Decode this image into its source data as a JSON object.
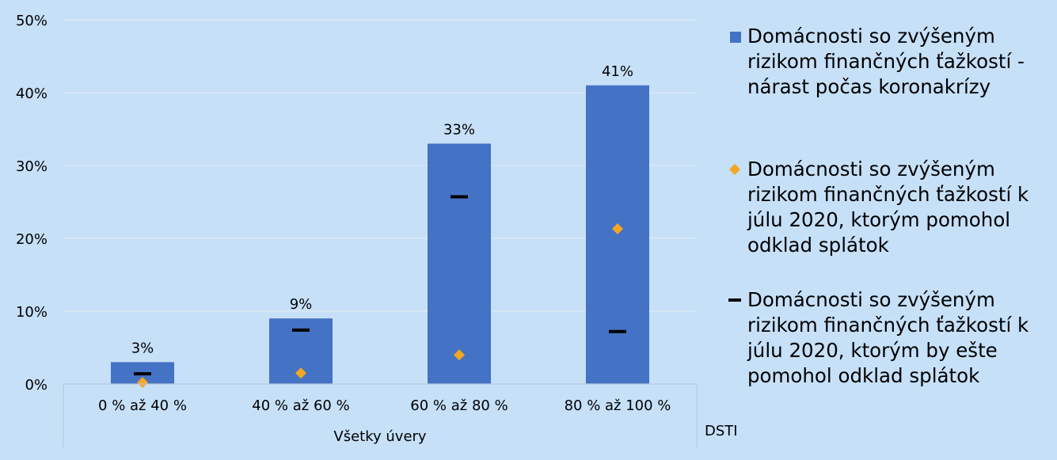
{
  "chart_data": {
    "type": "bar",
    "categories": [
      "0 % až 40 %",
      "40 % až 60 %",
      "60 % až 80 %",
      "80 % až 100 %"
    ],
    "group_label": "Všetky úvery",
    "xlabel": "DSTI",
    "ylim": [
      0,
      50
    ],
    "yticks": [
      0,
      10,
      20,
      30,
      40,
      50
    ],
    "ytick_labels": [
      "0%",
      "10%",
      "20%",
      "30%",
      "40%",
      "50%"
    ],
    "grid": true,
    "series": [
      {
        "name": "Domácnosti so zvýšeným rizikom finančných ťažkostí - nárast počas koronakrízy",
        "kind": "bar",
        "color": "#4472c4",
        "values": [
          3,
          9,
          33,
          41
        ],
        "labels": [
          "3%",
          "9%",
          "33%",
          "41%"
        ]
      },
      {
        "name": "Domácnosti so zvýšeným rizikom finančných ťažkostí k júlu 2020, ktorým pomohol odklad splátok",
        "kind": "diamond",
        "color": "#f5a623",
        "values": [
          0.2,
          1.5,
          4.0,
          21.3
        ]
      },
      {
        "name": "Domácnosti so zvýšeným rizikom finančných ťažkostí k júlu 2020, ktorým by ešte pomohol odklad splátok",
        "kind": "dash",
        "color": "#000000",
        "values": [
          1.4,
          7.4,
          25.7,
          7.2
        ]
      }
    ],
    "legend_position": "right"
  }
}
